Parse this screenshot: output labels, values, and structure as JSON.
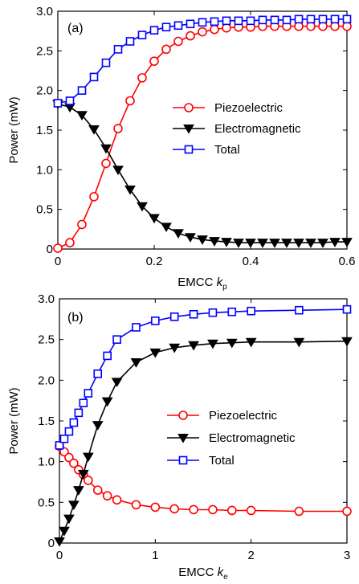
{
  "chart_data": [
    {
      "type": "line",
      "panel_label": "(a)",
      "x_label_main": "EMCC ",
      "x_label_italic": "k",
      "x_label_sub": "p",
      "ylabel": "Power (mW)",
      "xlim": [
        0,
        0.6
      ],
      "ylim": [
        0,
        3.0
      ],
      "xticks": [
        0,
        0.2,
        0.4,
        0.6
      ],
      "xtick_labels": [
        "0",
        "0.2",
        "0.4",
        "0.6"
      ],
      "yticks": [
        0,
        0.5,
        1.0,
        1.5,
        2.0,
        2.5,
        3.0
      ],
      "ytick_labels": [
        "0",
        "0.5",
        "1.0",
        "1.5",
        "2.0",
        "2.5",
        "3.0"
      ],
      "legend_position": "center-right",
      "series": [
        {
          "name": "Piezoelectric",
          "color": "#ff0000",
          "marker": "circle",
          "x": [
            0,
            0.025,
            0.05,
            0.075,
            0.1,
            0.125,
            0.15,
            0.175,
            0.2,
            0.225,
            0.25,
            0.275,
            0.3,
            0.325,
            0.35,
            0.375,
            0.4,
            0.425,
            0.45,
            0.475,
            0.5,
            0.525,
            0.55,
            0.575,
            0.6
          ],
          "values": [
            0.01,
            0.08,
            0.31,
            0.66,
            1.08,
            1.52,
            1.87,
            2.16,
            2.37,
            2.52,
            2.62,
            2.69,
            2.74,
            2.77,
            2.79,
            2.8,
            2.8,
            2.81,
            2.81,
            2.81,
            2.81,
            2.81,
            2.81,
            2.81,
            2.81
          ]
        },
        {
          "name": "Electromagnetic",
          "color": "#000000",
          "marker": "triangle-down",
          "x": [
            0,
            0.025,
            0.05,
            0.075,
            0.1,
            0.125,
            0.15,
            0.175,
            0.2,
            0.225,
            0.25,
            0.275,
            0.3,
            0.325,
            0.35,
            0.375,
            0.4,
            0.425,
            0.45,
            0.475,
            0.5,
            0.525,
            0.55,
            0.575,
            0.6
          ],
          "values": [
            1.83,
            1.79,
            1.69,
            1.51,
            1.27,
            1.0,
            0.75,
            0.54,
            0.39,
            0.28,
            0.2,
            0.15,
            0.12,
            0.1,
            0.09,
            0.08,
            0.08,
            0.08,
            0.08,
            0.08,
            0.08,
            0.08,
            0.08,
            0.09,
            0.09
          ]
        },
        {
          "name": "Total",
          "color": "#0000ff",
          "marker": "square",
          "x": [
            0,
            0.025,
            0.05,
            0.075,
            0.1,
            0.125,
            0.15,
            0.175,
            0.2,
            0.225,
            0.25,
            0.275,
            0.3,
            0.325,
            0.35,
            0.375,
            0.4,
            0.425,
            0.45,
            0.475,
            0.5,
            0.525,
            0.55,
            0.575,
            0.6
          ],
          "values": [
            1.84,
            1.87,
            2.0,
            2.17,
            2.35,
            2.52,
            2.62,
            2.7,
            2.76,
            2.8,
            2.82,
            2.84,
            2.86,
            2.87,
            2.88,
            2.88,
            2.88,
            2.89,
            2.89,
            2.89,
            2.9,
            2.9,
            2.9,
            2.9,
            2.9
          ]
        }
      ]
    },
    {
      "type": "line",
      "panel_label": "(b)",
      "x_label_main": "EMCC ",
      "x_label_italic": "k",
      "x_label_sub": "e",
      "ylabel": "Power (mW)",
      "xlim": [
        0,
        3
      ],
      "ylim": [
        0,
        3.0
      ],
      "xticks": [
        0,
        1,
        2,
        3
      ],
      "xtick_labels": [
        "0",
        "1",
        "2",
        "3"
      ],
      "yticks": [
        0,
        0.5,
        1.0,
        1.5,
        2.0,
        2.5,
        3.0
      ],
      "ytick_labels": [
        "0",
        "0.5",
        "1.0",
        "1.5",
        "2.0",
        "2.5",
        "3.0"
      ],
      "legend_position": "center-right",
      "series": [
        {
          "name": "Piezoelectric",
          "color": "#ff0000",
          "marker": "circle",
          "x": [
            0,
            0.05,
            0.1,
            0.15,
            0.2,
            0.25,
            0.3,
            0.4,
            0.5,
            0.6,
            0.8,
            1.0,
            1.2,
            1.4,
            1.6,
            1.8,
            2.0,
            2.5,
            3.0
          ],
          "values": [
            1.19,
            1.12,
            1.05,
            0.98,
            0.9,
            0.84,
            0.77,
            0.65,
            0.58,
            0.53,
            0.47,
            0.44,
            0.42,
            0.41,
            0.41,
            0.4,
            0.4,
            0.39,
            0.39
          ]
        },
        {
          "name": "Electromagnetic",
          "color": "#000000",
          "marker": "triangle-down",
          "x": [
            0,
            0.05,
            0.1,
            0.15,
            0.2,
            0.25,
            0.3,
            0.4,
            0.5,
            0.6,
            0.8,
            1.0,
            1.2,
            1.4,
            1.6,
            1.8,
            2.0,
            2.5,
            3.0
          ],
          "values": [
            0.02,
            0.15,
            0.3,
            0.47,
            0.65,
            0.85,
            1.06,
            1.45,
            1.74,
            1.98,
            2.22,
            2.34,
            2.4,
            2.43,
            2.45,
            2.46,
            2.47,
            2.47,
            2.48
          ]
        },
        {
          "name": "Total",
          "color": "#0000ff",
          "marker": "square",
          "x": [
            0,
            0.05,
            0.1,
            0.15,
            0.2,
            0.25,
            0.3,
            0.4,
            0.5,
            0.6,
            0.8,
            1.0,
            1.2,
            1.4,
            1.6,
            1.8,
            2.0,
            2.5,
            3.0
          ],
          "values": [
            1.2,
            1.28,
            1.37,
            1.48,
            1.6,
            1.72,
            1.84,
            2.08,
            2.3,
            2.5,
            2.65,
            2.73,
            2.78,
            2.81,
            2.83,
            2.84,
            2.85,
            2.86,
            2.87
          ]
        }
      ]
    }
  ]
}
